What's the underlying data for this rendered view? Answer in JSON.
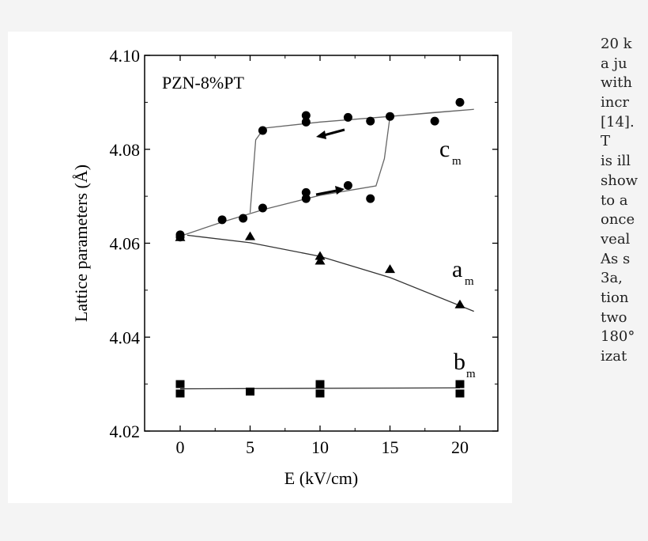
{
  "chart_data": {
    "type": "scatter",
    "annotation": "PZN-8%PT",
    "xlabel": "E (kV/cm)",
    "ylabel": "Lattice parameters (Å)",
    "xlim": [
      -2.5,
      22.8
    ],
    "ylim": [
      4.02,
      4.1
    ],
    "xticks": [
      "0",
      "5",
      "10",
      "15",
      "20"
    ],
    "yticks": [
      "4.02",
      "4.04",
      "4.06",
      "4.08",
      "4.10"
    ],
    "grid": false,
    "series": [
      {
        "name": "c",
        "subscript": "m",
        "marker": "circle",
        "points": [
          [
            0,
            4.0618
          ],
          [
            0,
            4.0613
          ],
          [
            3,
            4.065
          ],
          [
            4.5,
            4.0653
          ],
          [
            5.9,
            4.0675
          ],
          [
            9,
            4.0708
          ],
          [
            9,
            4.0695
          ],
          [
            12,
            4.0723
          ],
          [
            13.6,
            4.0695
          ],
          [
            5.9,
            4.084
          ],
          [
            9,
            4.0872
          ],
          [
            9,
            4.0858
          ],
          [
            12,
            4.0868
          ],
          [
            13.6,
            4.086
          ],
          [
            15,
            4.087
          ],
          [
            18.2,
            4.086
          ],
          [
            20,
            4.09
          ]
        ],
        "fit": [
          [
            0,
            4.0615
          ],
          [
            3,
            4.0645
          ],
          [
            6,
            4.0672
          ],
          [
            10,
            4.0702
          ],
          [
            14,
            4.0722
          ],
          [
            14.6,
            4.078
          ],
          [
            15,
            4.087
          ],
          [
            18,
            4.0878
          ],
          [
            21,
            4.0885
          ],
          [
            15,
            4.087
          ],
          [
            10,
            4.0858
          ],
          [
            6,
            4.0845
          ],
          [
            5.4,
            4.082
          ],
          [
            5,
            4.0665
          ]
        ]
      },
      {
        "name": "a",
        "subscript": "m",
        "marker": "triangle",
        "points": [
          [
            0,
            4.0613
          ],
          [
            5,
            4.0615
          ],
          [
            10,
            4.0573
          ],
          [
            10,
            4.0563
          ],
          [
            15,
            4.0545
          ],
          [
            20,
            4.047
          ]
        ],
        "fit": [
          [
            0.5,
            4.0617
          ],
          [
            5,
            4.0601
          ],
          [
            10,
            4.0572
          ],
          [
            15,
            4.0527
          ],
          [
            21,
            4.0455
          ]
        ]
      },
      {
        "name": "b",
        "subscript": "m",
        "marker": "square",
        "points": [
          [
            0,
            4.03
          ],
          [
            0,
            4.028
          ],
          [
            5,
            4.0284
          ],
          [
            10,
            4.03
          ],
          [
            10,
            4.028
          ],
          [
            20,
            4.03
          ],
          [
            20,
            4.028
          ]
        ],
        "fit": [
          [
            0,
            4.029
          ],
          [
            20,
            4.0292
          ]
        ]
      }
    ],
    "arrows": [
      {
        "direction": "left",
        "branch": "upper"
      },
      {
        "direction": "right",
        "branch": "lower"
      }
    ]
  },
  "side_text": [
    "20 k",
    "a ju",
    "with",
    "incr",
    "[14].",
    "   T",
    "is ill",
    "show",
    "to a",
    "once",
    "veal",
    "As s",
    "3a,",
    "tion",
    "two",
    "180°",
    "izat"
  ]
}
